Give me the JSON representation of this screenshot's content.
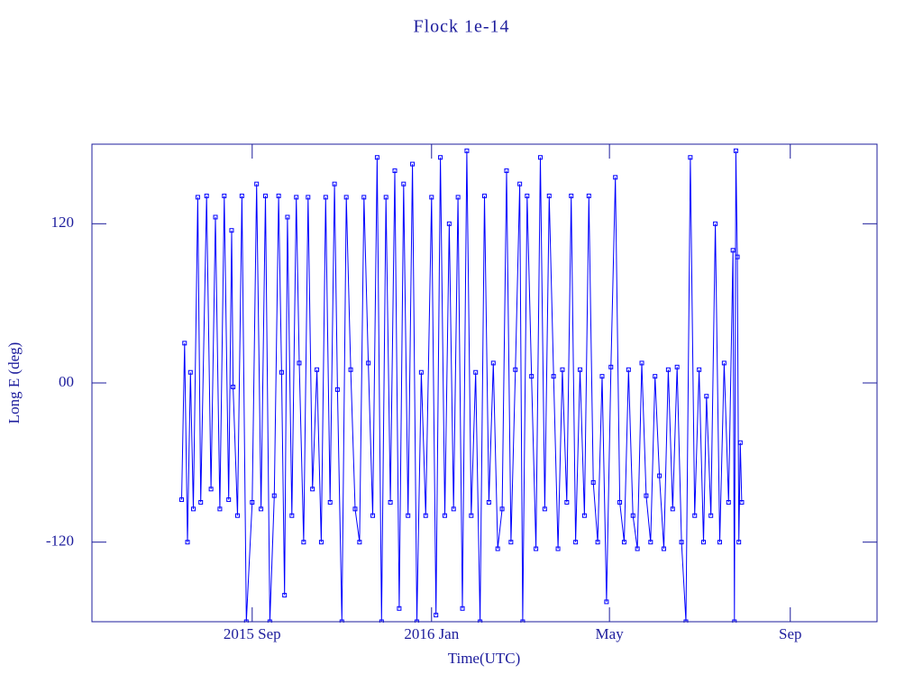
{
  "chart_data": {
    "type": "line",
    "title": "Flock 1e-14",
    "x_label": "Time(UTC)",
    "y_label": "Long E (deg)",
    "color": "#0000ff",
    "marker": "square",
    "xlim": [
      "2015-05-15",
      "2016-10-30"
    ],
    "xticks": [
      {
        "value": "2015-09-01",
        "label": "2015 Sep"
      },
      {
        "value": "2016-01-01",
        "label": "2016 Jan"
      },
      {
        "value": "2016-05-01",
        "label": "May"
      },
      {
        "value": "2016-09-01",
        "label": "Sep"
      }
    ],
    "ylim": [
      -180,
      180
    ],
    "yticks": [
      -120,
      {
        "value": 0,
        "label": "00"
      },
      120
    ],
    "x": [
      "2015-07-15",
      "2015-07-17",
      "2015-07-19",
      "2015-07-21",
      "2015-07-23",
      "2015-07-26",
      "2015-07-28",
      "2015-08-01",
      "2015-08-04",
      "2015-08-07",
      "2015-08-10",
      "2015-08-13",
      "2015-08-16",
      "2015-08-18",
      "2015-08-19",
      "2015-08-22",
      "2015-08-25",
      "2015-08-28",
      "2015-09-01",
      "2015-09-04",
      "2015-09-07",
      "2015-09-10",
      "2015-09-13",
      "2015-09-16",
      "2015-09-19",
      "2015-09-21",
      "2015-09-23",
      "2015-09-25",
      "2015-09-28",
      "2015-10-01",
      "2015-10-03",
      "2015-10-06",
      "2015-10-09",
      "2015-10-12",
      "2015-10-15",
      "2015-10-18",
      "2015-10-21",
      "2015-10-24",
      "2015-10-27",
      "2015-10-29",
      "2015-11-01",
      "2015-11-04",
      "2015-11-07",
      "2015-11-10",
      "2015-11-13",
      "2015-11-16",
      "2015-11-19",
      "2015-11-22",
      "2015-11-25",
      "2015-11-28",
      "2015-12-01",
      "2015-12-04",
      "2015-12-07",
      "2015-12-10",
      "2015-12-13",
      "2015-12-16",
      "2015-12-19",
      "2015-12-22",
      "2015-12-25",
      "2015-12-28",
      "2016-01-01",
      "2016-01-04",
      "2016-01-07",
      "2016-01-10",
      "2016-01-13",
      "2016-01-16",
      "2016-01-19",
      "2016-01-22",
      "2016-01-25",
      "2016-01-28",
      "2016-01-31",
      "2016-02-03",
      "2016-02-06",
      "2016-02-09",
      "2016-02-12",
      "2016-02-15",
      "2016-02-18",
      "2016-02-21",
      "2016-02-24",
      "2016-02-27",
      "2016-03-01",
      "2016-03-03",
      "2016-03-06",
      "2016-03-09",
      "2016-03-12",
      "2016-03-15",
      "2016-03-18",
      "2016-03-21",
      "2016-03-24",
      "2016-03-27",
      "2016-03-30",
      "2016-04-02",
      "2016-04-05",
      "2016-04-08",
      "2016-04-11",
      "2016-04-14",
      "2016-04-17",
      "2016-04-20",
      "2016-04-23",
      "2016-04-26",
      "2016-04-29",
      "2016-05-02",
      "2016-05-05",
      "2016-05-08",
      "2016-05-11",
      "2016-05-14",
      "2016-05-17",
      "2016-05-20",
      "2016-05-23",
      "2016-05-26",
      "2016-05-29",
      "2016-06-01",
      "2016-06-04",
      "2016-06-07",
      "2016-06-10",
      "2016-06-13",
      "2016-06-16",
      "2016-06-19",
      "2016-06-22",
      "2016-06-25",
      "2016-06-28",
      "2016-07-01",
      "2016-07-04",
      "2016-07-06",
      "2016-07-09",
      "2016-07-12",
      "2016-07-15",
      "2016-07-18",
      "2016-07-21",
      "2016-07-24",
      "2016-07-25",
      "2016-07-26",
      "2016-07-27",
      "2016-07-28",
      "2016-07-29",
      "2016-07-30"
    ],
    "values": [
      -88,
      30,
      -120,
      8,
      -95,
      140,
      -90,
      141,
      -80,
      125,
      -95,
      141,
      -88,
      115,
      -3,
      -100,
      141,
      -180,
      -90,
      150,
      -95,
      141,
      -180,
      -85,
      141,
      8,
      -160,
      125,
      -100,
      140,
      15,
      -120,
      140,
      -80,
      10,
      -120,
      140,
      -90,
      150,
      -5,
      -180,
      140,
      10,
      -95,
      -120,
      140,
      15,
      -100,
      170,
      -180,
      140,
      -90,
      160,
      -170,
      150,
      -100,
      165,
      -180,
      8,
      -100,
      140,
      -175,
      170,
      -100,
      120,
      -95,
      140,
      -170,
      175,
      -100,
      8,
      -180,
      141,
      -90,
      15,
      -125,
      -95,
      160,
      -120,
      10,
      150,
      -180,
      141,
      5,
      -125,
      170,
      -95,
      141,
      5,
      -125,
      10,
      -90,
      141,
      -120,
      10,
      -100,
      141,
      -75,
      -120,
      5,
      -165,
      12,
      155,
      -90,
      -120,
      10,
      -100,
      -125,
      15,
      -85,
      -120,
      5,
      -70,
      -125,
      10,
      -95,
      12,
      -120,
      -180,
      170,
      -100,
      10,
      -120,
      -10,
      -100,
      120,
      -120,
      15,
      -90,
      100,
      -180,
      175,
      95,
      -120,
      -45,
      -90
    ]
  }
}
